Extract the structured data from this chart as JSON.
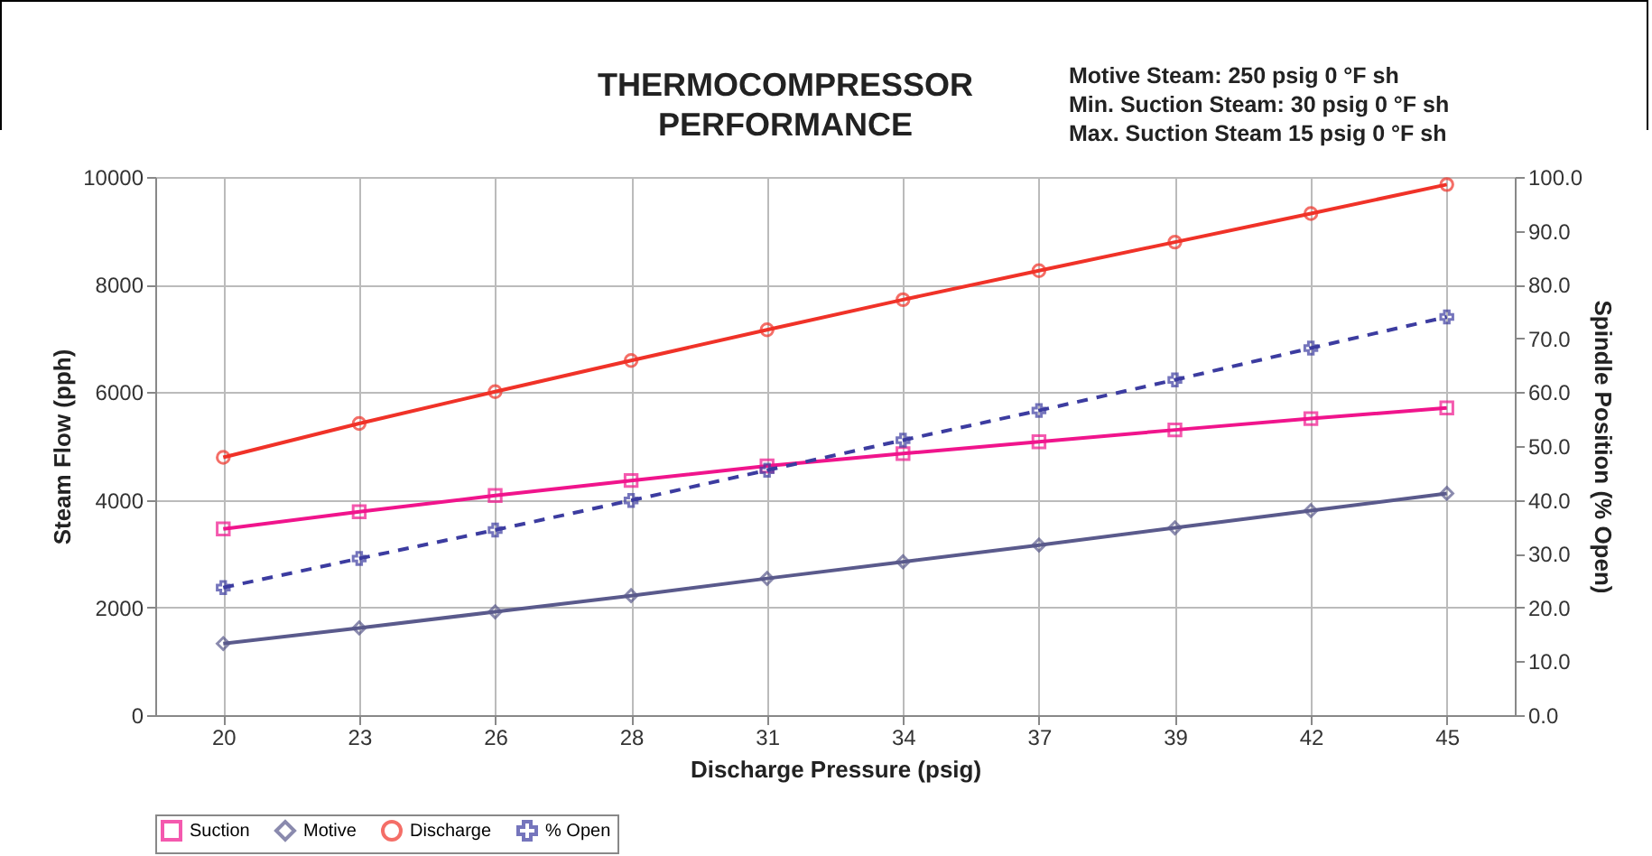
{
  "chart_data": {
    "type": "line",
    "title": "THERMOCOMPRESSOR PERFORMANCE",
    "annotations": [
      "Motive Steam: 250 psig 0 °F sh",
      "Min. Suction Steam: 30 psig 0 °F sh",
      "Max. Suction Steam 15 psig 0 °F sh"
    ],
    "xlabel": "Discharge Pressure (psig)",
    "ylabel": "Steam Flow (pph)",
    "y2label": "Spindle Position (% Open)",
    "categories": [
      "20",
      "23",
      "26",
      "28",
      "31",
      "34",
      "37",
      "39",
      "42",
      "45"
    ],
    "series": [
      {
        "name": "Suction",
        "color": "#f0148c",
        "marker": "square",
        "values": [
          3460,
          3780,
          4080,
          4360,
          4630,
          4860,
          5080,
          5300,
          5510,
          5710
        ]
      },
      {
        "name": "Motive",
        "color": "#5a5a8c",
        "marker": "diamond",
        "values": [
          1330,
          1620,
          1920,
          2220,
          2540,
          2850,
          3160,
          3480,
          3800,
          4120
        ]
      },
      {
        "name": "Discharge",
        "color": "#f03228",
        "marker": "circle",
        "values": [
          4790,
          5420,
          6010,
          6590,
          7160,
          7720,
          8260,
          8790,
          9320,
          9860
        ]
      },
      {
        "name": "% Open",
        "color": "#3c3ca0",
        "marker": "cross",
        "line_style": "dashed",
        "axis": "y2",
        "values": [
          23.7,
          29.1,
          34.4,
          39.9,
          45.5,
          51.1,
          56.6,
          62.3,
          68.2,
          74.0
        ]
      }
    ],
    "ylim": [
      0,
      10000
    ],
    "yticks": [
      0,
      2000,
      4000,
      6000,
      8000,
      10000
    ],
    "y2lim": [
      0,
      100
    ],
    "y2ticks": [
      {
        "value": 0,
        "label": "0.0"
      },
      {
        "value": 10,
        "label": "10.0"
      },
      {
        "value": 20,
        "label": "20.0"
      },
      {
        "value": 30,
        "label": "30.0"
      },
      {
        "value": 40,
        "label": "40.0"
      },
      {
        "value": 50,
        "label": "50.0"
      },
      {
        "value": 60,
        "label": "60.0"
      },
      {
        "value": 70,
        "label": "70.0"
      },
      {
        "value": 80,
        "label": "80.0"
      },
      {
        "value": 90,
        "label": "90.0"
      },
      {
        "value": 100,
        "label": "100.0"
      }
    ],
    "grid": true,
    "legend": "bottom"
  }
}
